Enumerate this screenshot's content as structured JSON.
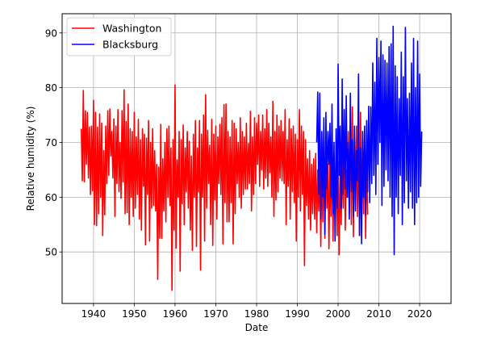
{
  "chart_data": {
    "type": "line",
    "title": "",
    "xlabel": "Date",
    "ylabel": "Relative humidity (%)",
    "xlim": [
      1932.3,
      2027.7
    ],
    "ylim": [
      40.6,
      93.5
    ],
    "x_ticks": [
      1940,
      1950,
      1960,
      1970,
      1980,
      1990,
      2000,
      2010,
      2020
    ],
    "x_tick_labels": [
      "1940",
      "1950",
      "1960",
      "1970",
      "1980",
      "1990",
      "2000",
      "2010",
      "2020"
    ],
    "y_ticks": [
      50,
      60,
      70,
      80,
      90
    ],
    "y_tick_labels": [
      "50",
      "60",
      "70",
      "80",
      "90"
    ],
    "grid": true,
    "legend": {
      "position": "top-left",
      "entries": [
        "Washington",
        "Blacksburg"
      ]
    },
    "series": [
      {
        "name": "Washington",
        "color": "#ff0000",
        "x_start": 1937.0,
        "x_step": 0.25,
        "values": [
          72.5,
          63,
          79.5,
          62.8,
          75.8,
          66,
          75.5,
          63.5,
          72.8,
          60.5,
          73,
          61.2,
          77.7,
          55,
          75.5,
          54.8,
          72.8,
          57,
          75.2,
          60,
          73.5,
          53,
          68.5,
          56.8,
          73,
          62.5,
          75.8,
          64,
          76.1,
          67.5,
          72,
          63.5,
          74.3,
          56.5,
          73,
          62.5,
          76,
          61,
          70,
          59.8,
          75.8,
          62.8,
          79.6,
          57,
          73.8,
          57.2,
          77,
          55,
          72.5,
          60,
          72,
          56.5,
          75.5,
          58,
          71,
          60.5,
          74.2,
          56,
          70.5,
          54,
          72.5,
          62,
          71.5,
          51.3,
          70.8,
          60.5,
          74,
          52,
          70,
          58,
          72.5,
          58.5,
          68.5,
          57.5,
          66,
          45,
          65.5,
          52.5,
          73.3,
          52.5,
          67,
          57.5,
          70,
          55.5,
          72.5,
          60,
          73,
          58.5,
          69,
          43,
          70.5,
          54,
          80.5,
          50.7,
          66.8,
          60,
          72,
          46.5,
          70.5,
          58.8,
          73.2,
          55,
          69,
          61,
          72,
          58,
          70.2,
          54,
          67.5,
          50.3,
          71.5,
          60,
          74,
          51,
          69,
          61,
          74,
          46.7,
          71.5,
          60,
          75,
          52,
          78.7,
          58,
          72.2,
          62.5,
          69.5,
          55,
          74.2,
          51.2,
          71.5,
          59.5,
          73,
          56,
          71,
          62.5,
          73.3,
          60.5,
          74.5,
          51.5,
          76.9,
          59,
          77,
          55.5,
          72,
          55.5,
          71,
          59,
          74,
          51.5,
          73.5,
          57,
          72.5,
          62.5,
          70,
          60,
          74.5,
          58,
          72,
          60.5,
          71,
          61.5,
          73.5,
          61.5,
          69.8,
          62.5,
          75.7,
          57.5,
          71,
          60.5,
          74.5,
          62.5,
          73.5,
          66,
          75,
          62,
          72,
          65,
          75,
          61.5,
          72.5,
          63.5,
          76,
          62,
          73.5,
          64.5,
          71,
          60,
          77.5,
          56.5,
          72,
          59.5,
          75,
          61,
          73,
          63.5,
          74,
          63,
          72,
          62.5,
          76,
          55,
          70.5,
          62,
          74.3,
          56,
          72.5,
          61,
          73,
          59,
          71.5,
          52,
          70.5,
          60,
          76,
          57.5,
          73,
          60.5,
          72,
          47.5,
          70.5,
          58.5,
          67,
          56,
          68.5,
          54,
          66,
          57,
          67,
          56,
          68,
          53.5,
          65,
          57.5,
          66,
          51,
          67.5,
          55.5,
          67.5,
          52.5,
          68,
          58,
          66,
          50.6,
          67,
          56.5,
          68.5,
          52,
          66,
          57.5,
          67.5,
          53,
          66.5,
          49.5,
          65,
          55,
          67,
          58,
          73.5,
          54,
          65,
          60,
          72,
          57,
          75,
          55,
          76.5,
          52.8,
          70.5,
          59,
          73,
          56.5,
          71,
          53,
          75.5,
          53.5,
          72,
          57,
          70,
          52.5,
          68,
          56.8
        ]
      },
      {
        "name": "Blacksburg",
        "color": "#0000ff",
        "x_start": 1994.75,
        "x_step": 0.25,
        "values": [
          70,
          79.2,
          60.5,
          79,
          56,
          72,
          60,
          74.5,
          53.2,
          75.5,
          61.5,
          72,
          66,
          73.5,
          60,
          77,
          57,
          70,
          52,
          72.5,
          58,
          84.3,
          64,
          73,
          58,
          81.6,
          60.5,
          76,
          61.5,
          78.5,
          60,
          70,
          56,
          79,
          61,
          70.5,
          56.5,
          73,
          57.5,
          68.5,
          63,
          82.5,
          53,
          69,
          51.5,
          72,
          60,
          73,
          56.8,
          74,
          61,
          76.6,
          59,
          76.5,
          62.5,
          84.5,
          64,
          81,
          60.5,
          89,
          66,
          85.5,
          70,
          88.5,
          58.5,
          86,
          62,
          85,
          65,
          84.5,
          63,
          87.5,
          60,
          88,
          56.5,
          91.2,
          49.5,
          84,
          60,
          82,
          57,
          78,
          64,
          86.5,
          55,
          82,
          59,
          91,
          63,
          78,
          58,
          79,
          61,
          84.5,
          58,
          89,
          55,
          80,
          59,
          88.5,
          60,
          82.5,
          62,
          72
        ]
      }
    ]
  }
}
